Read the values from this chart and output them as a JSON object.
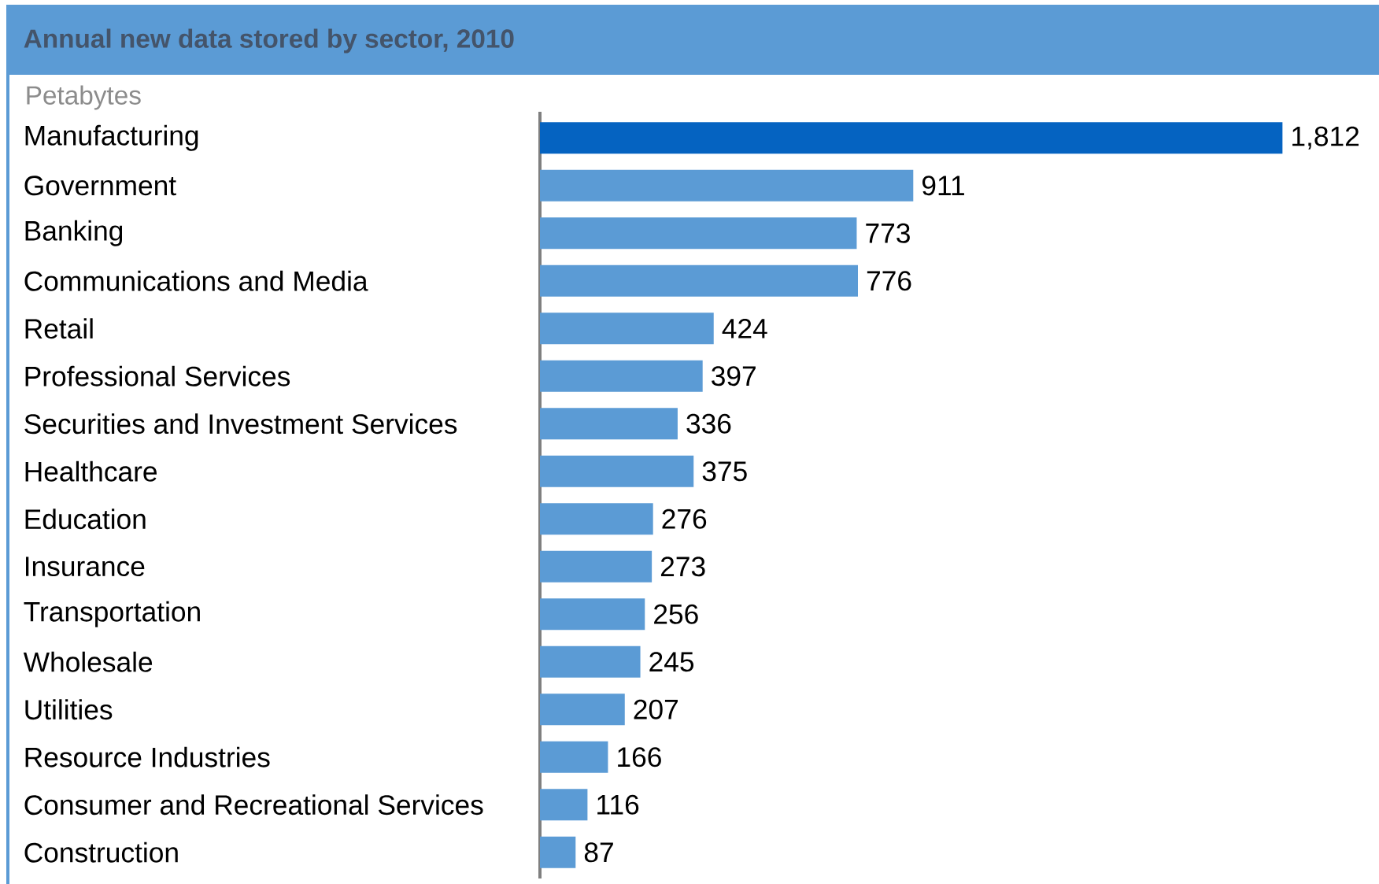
{
  "chart_data": {
    "type": "bar",
    "orientation": "horizontal",
    "title": "Annual new data stored by sector, 2010",
    "subtitle": "Petabytes",
    "categories": [
      "Manufacturing",
      "Government",
      "Banking",
      "Communications and Media",
      "Retail",
      "Professional Services",
      "Securities and Investment Services",
      "Healthcare",
      "Education",
      "Insurance",
      "Transportation",
      "Wholesale",
      "Utilities",
      "Resource Industries",
      "Consumer and Recreational Services",
      "Construction"
    ],
    "values": [
      1812,
      911,
      773,
      776,
      424,
      397,
      336,
      375,
      276,
      273,
      256,
      245,
      207,
      166,
      116,
      87
    ],
    "value_labels": [
      "1,812",
      "911",
      "773",
      "776",
      "424",
      "397",
      "336",
      "375",
      "276",
      "273",
      "256",
      "245",
      "207",
      "166",
      "116",
      "87"
    ],
    "colors": [
      "#0563c1",
      "#5b9bd5",
      "#5b9bd5",
      "#5b9bd5",
      "#5b9bd5",
      "#5b9bd5",
      "#5b9bd5",
      "#5b9bd5",
      "#5b9bd5",
      "#5b9bd5",
      "#5b9bd5",
      "#5b9bd5",
      "#5b9bd5",
      "#5b9bd5",
      "#5b9bd5",
      "#5b9bd5"
    ],
    "tick_labels": "y"
  }
}
